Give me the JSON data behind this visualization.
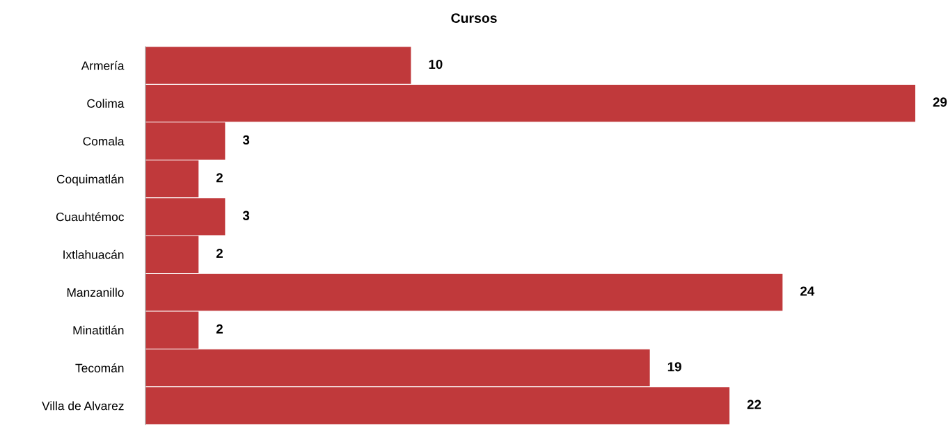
{
  "chart_data": {
    "type": "bar",
    "orientation": "horizontal",
    "title": "Cursos",
    "categories": [
      "Armería",
      "Colima",
      "Comala",
      "Coquimatlán",
      "Cuauhtémoc",
      "Ixtlahuacán",
      "Manzanillo",
      "Minatitlán",
      "Tecomán",
      "Villa de Alvarez"
    ],
    "values": [
      10,
      29,
      3,
      2,
      3,
      2,
      24,
      2,
      19,
      22
    ],
    "color": "#c0393b",
    "data_labels": true,
    "grid": false,
    "legend": false
  }
}
